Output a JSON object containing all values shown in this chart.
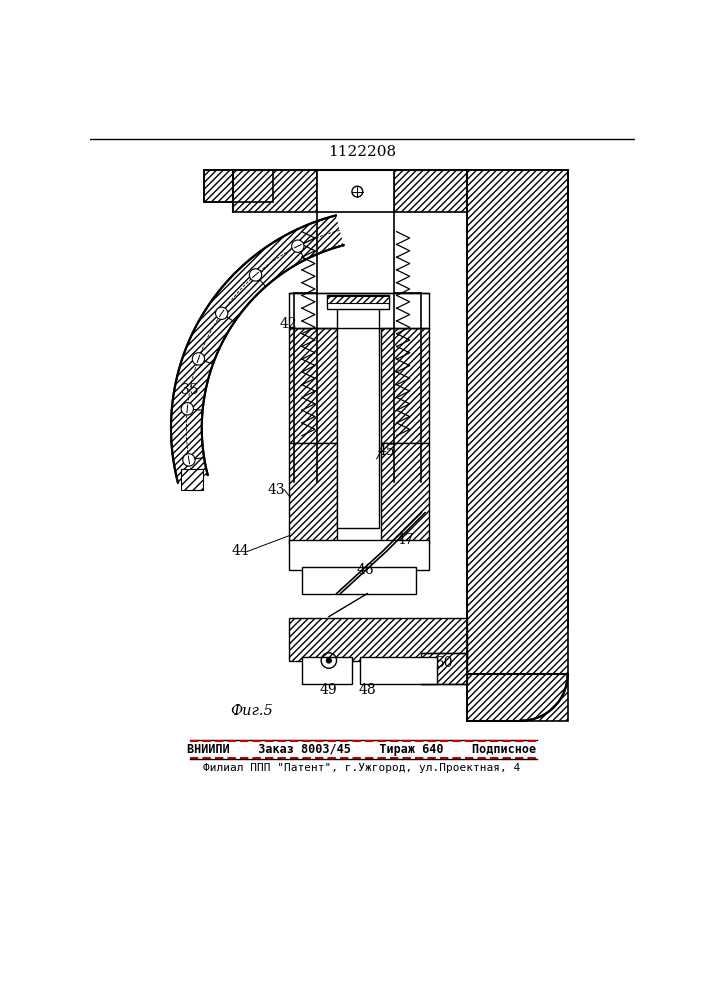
{
  "patent_number": "1122208",
  "figure_label": "Фиг.5",
  "bottom_line1": "ВНИИПИ    Заказ 8003/45    Тираж 640    Подписное",
  "bottom_line2": "Филиал ППП \"Патент\", г.Ужгород, ул.Проектная, 4",
  "bg_color": "#ffffff",
  "line_color": "#000000"
}
